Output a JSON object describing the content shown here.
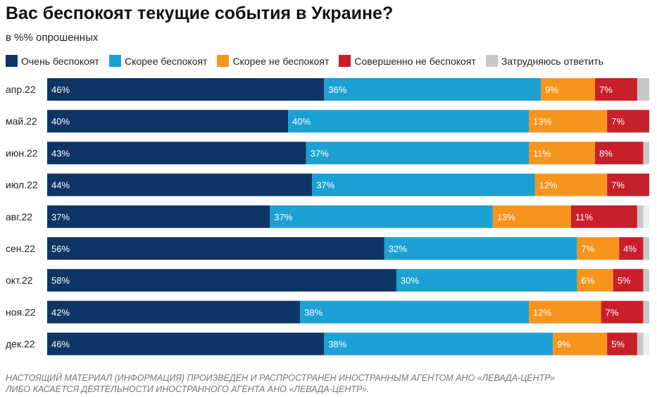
{
  "header": {
    "title": "Вас беспокоят текущие события в Украине?",
    "subtitle": "в %% опрошенных"
  },
  "footer": {
    "line1": "НАСТОЯЩИЙ МАТЕРИАЛ (ИНФОРМАЦИЯ) ПРОИЗВЕДЕН И РАСПРОСТРАНЕН ИНОСТРАННЫМ АГЕНТОМ АНО «ЛЕВАДА-ЦЕНТР»",
    "line2": "ЛИБО КАСАЕТСЯ ДЕЯТЕЛЬНОСТИ ИНОСТРАННОГО АГЕНТА АНО «ЛЕВАДА-ЦЕНТР»."
  },
  "chart_data": {
    "type": "bar",
    "orientation": "horizontal",
    "stacked": true,
    "title": "Вас беспокоят текущие события в Украине?",
    "subtitle": "в %% опрошенных",
    "legend_position": "top",
    "xlim": [
      0,
      100
    ],
    "grid": false,
    "categories": [
      "апр.22",
      "май.22",
      "июн.22",
      "июл.22",
      "авг.22",
      "сен.22",
      "окт.22",
      "ноя.22",
      "дек.22"
    ],
    "series": [
      {
        "name": "Очень беспокоят",
        "color": "#0d3566",
        "values": [
          46,
          40,
          43,
          44,
          37,
          56,
          58,
          42,
          46
        ]
      },
      {
        "name": "Скорее беспокоят",
        "color": "#1ba1d3",
        "values": [
          36,
          40,
          37,
          37,
          37,
          32,
          30,
          38,
          38
        ]
      },
      {
        "name": "Скорее не беспокоят",
        "color": "#f7941d",
        "values": [
          9,
          13,
          11,
          12,
          13,
          7,
          6,
          12,
          9
        ]
      },
      {
        "name": "Совершенно не беспокоят",
        "color": "#c8202a",
        "values": [
          7,
          7,
          8,
          7,
          11,
          4,
          5,
          7,
          5
        ]
      },
      {
        "name": "Затрудняюсь ответить",
        "color": "#c8c8c8",
        "values": [
          3,
          1,
          1,
          1,
          1,
          1,
          1,
          1,
          1
        ],
        "show_labels": false
      }
    ]
  }
}
